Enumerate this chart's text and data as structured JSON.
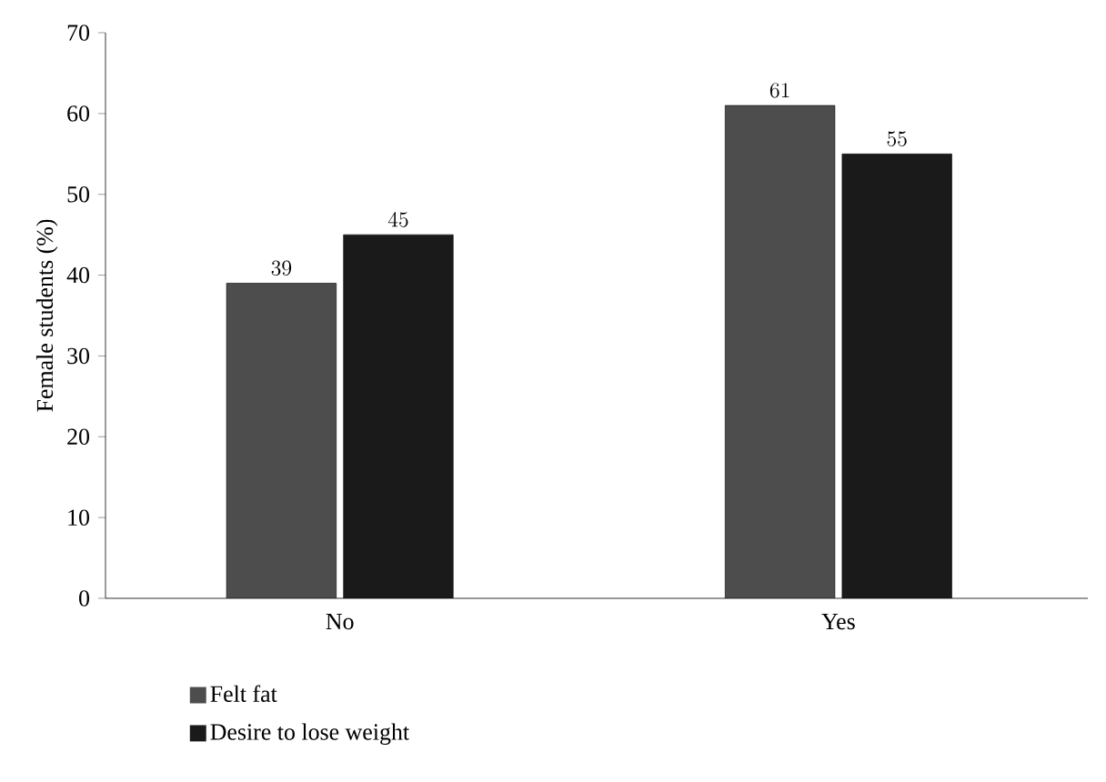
{
  "chart_data": {
    "type": "bar",
    "ylabel": "Female students (%)",
    "categories": [
      "No",
      "Yes"
    ],
    "series": [
      {
        "name": "Felt fat",
        "color": "#4d4d4d",
        "values": [
          39,
          61
        ]
      },
      {
        "name": "Desire to lose weight",
        "color": "#1a1a1a",
        "values": [
          45,
          55
        ]
      }
    ],
    "ylim": [
      0,
      70
    ],
    "yticks": [
      0,
      10,
      20,
      30,
      40,
      50,
      60,
      70
    ],
    "data_labels": true,
    "legend": "bottom left",
    "grid": false
  }
}
